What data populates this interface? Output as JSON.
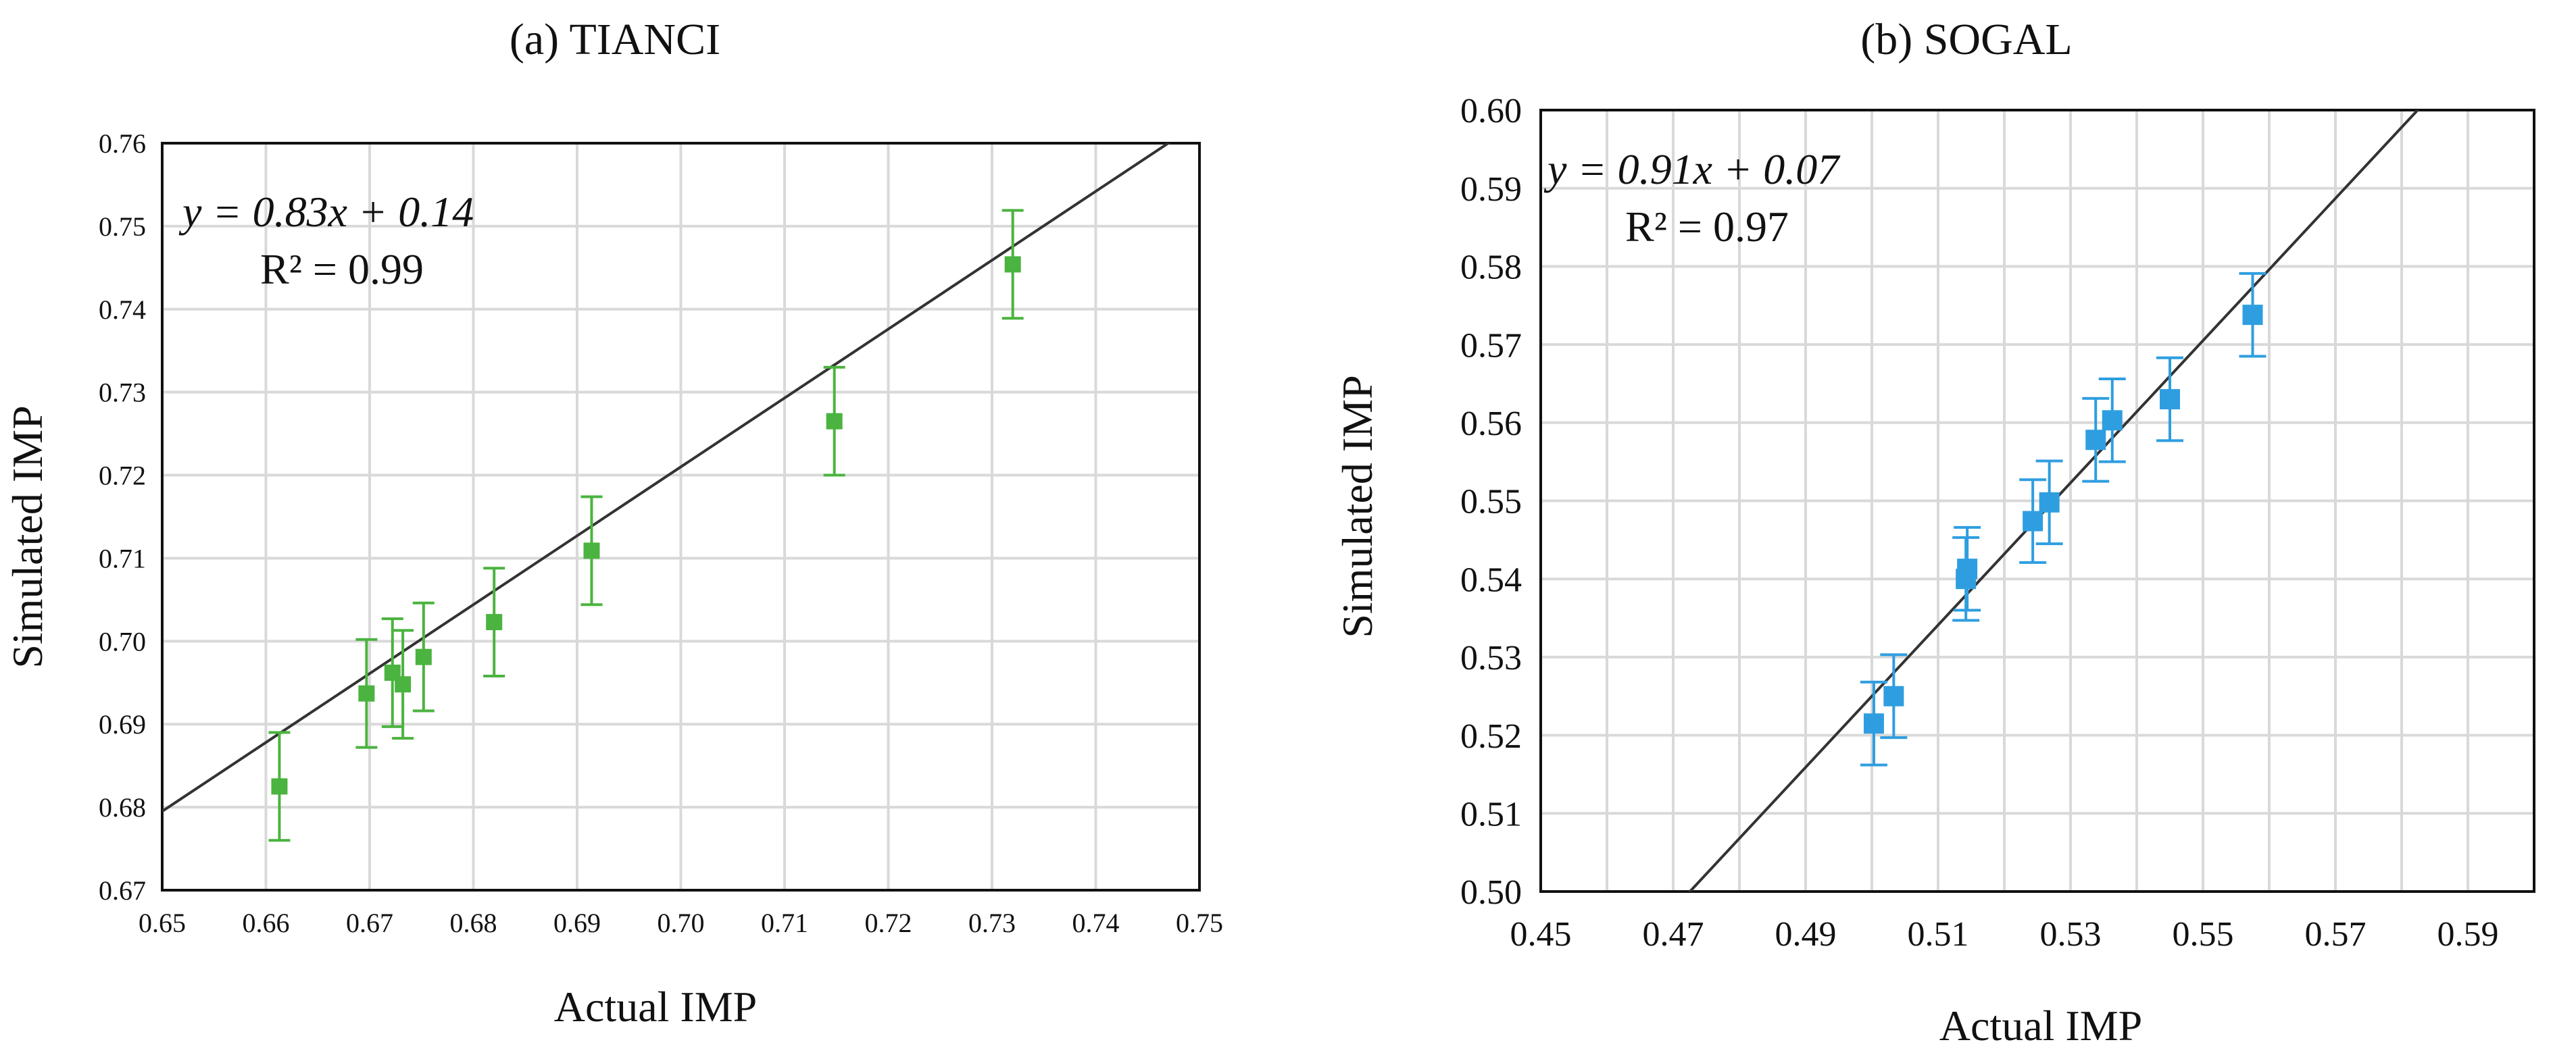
{
  "chart_data": [
    {
      "type": "scatter",
      "title": "(a) TIANCI",
      "xlabel": "Actual IMP",
      "ylabel": "Simulated IMP",
      "xlim": [
        0.65,
        0.75
      ],
      "ylim": [
        0.67,
        0.76
      ],
      "x_ticks": [
        "0.65",
        "0.66",
        "0.67",
        "0.68",
        "0.69",
        "0.70",
        "0.71",
        "0.72",
        "0.73",
        "0.74",
        "0.75"
      ],
      "y_ticks": [
        "0.67",
        "0.68",
        "0.69",
        "0.70",
        "0.71",
        "0.72",
        "0.73",
        "0.74",
        "0.75",
        "0.76"
      ],
      "grid": true,
      "marker_color": "#4bb33f",
      "points": [
        {
          "x": 0.6613,
          "y": 0.6825,
          "err": 0.0065
        },
        {
          "x": 0.6697,
          "y": 0.6937,
          "err": 0.0065
        },
        {
          "x": 0.6722,
          "y": 0.6962,
          "err": 0.0065
        },
        {
          "x": 0.6732,
          "y": 0.6948,
          "err": 0.0065
        },
        {
          "x": 0.6752,
          "y": 0.6981,
          "err": 0.0065
        },
        {
          "x": 0.682,
          "y": 0.7023,
          "err": 0.0065
        },
        {
          "x": 0.6914,
          "y": 0.7109,
          "err": 0.0065
        },
        {
          "x": 0.7148,
          "y": 0.7265,
          "err": 0.0065
        },
        {
          "x": 0.732,
          "y": 0.7454,
          "err": 0.0065
        }
      ],
      "equation": "y = 0.83x + 0.14",
      "r2_label": "R² = 0.99",
      "fit": {
        "slope": 0.83,
        "intercept": 0.14
      }
    },
    {
      "type": "scatter",
      "title": "(b) SOGAL",
      "xlabel": "Actual IMP",
      "ylabel": "Simulated IMP",
      "xlim": [
        0.45,
        0.6
      ],
      "ylim": [
        0.5,
        0.6
      ],
      "x_ticks": [
        "0.45",
        "0.47",
        "0.49",
        "0.51",
        "0.53",
        "0.55",
        "0.57",
        "0.59"
      ],
      "y_ticks": [
        "0.50",
        "0.51",
        "0.52",
        "0.53",
        "0.54",
        "0.55",
        "0.56",
        "0.57",
        "0.58",
        "0.59",
        "0.60"
      ],
      "grid": true,
      "marker_color": "#2f9ee0",
      "points": [
        {
          "x": 0.5003,
          "y": 0.5215,
          "err": 0.0053
        },
        {
          "x": 0.5033,
          "y": 0.525,
          "err": 0.0053
        },
        {
          "x": 0.5142,
          "y": 0.54,
          "err": 0.0053
        },
        {
          "x": 0.5144,
          "y": 0.5413,
          "err": 0.0053
        },
        {
          "x": 0.5243,
          "y": 0.5474,
          "err": 0.0053
        },
        {
          "x": 0.5268,
          "y": 0.5498,
          "err": 0.0053
        },
        {
          "x": 0.5338,
          "y": 0.5578,
          "err": 0.0053
        },
        {
          "x": 0.5363,
          "y": 0.5603,
          "err": 0.0053
        },
        {
          "x": 0.545,
          "y": 0.563,
          "err": 0.0053
        },
        {
          "x": 0.5575,
          "y": 0.5738,
          "err": 0.0053
        }
      ],
      "equation": "y = 0.91x + 0.07",
      "r2_label": "R² = 0.97",
      "fit": {
        "slope": 0.91,
        "intercept": 0.07
      }
    }
  ]
}
